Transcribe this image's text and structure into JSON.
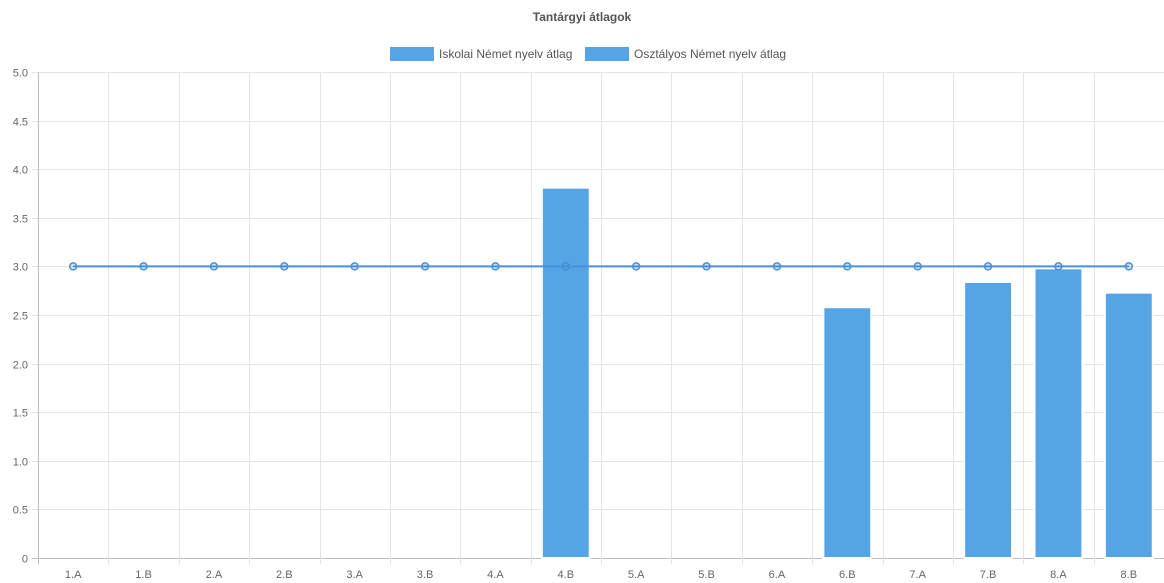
{
  "chart_data": {
    "type": "bar",
    "title": "Tantárgyi átlagok",
    "categories": [
      "1.A",
      "1.B",
      "2.A",
      "2.B",
      "3.A",
      "3.B",
      "4.A",
      "4.B",
      "5.A",
      "5.B",
      "6.A",
      "6.B",
      "7.A",
      "7.B",
      "8.A",
      "8.B"
    ],
    "series": [
      {
        "name": "Iskolai Német nyelv átlag",
        "kind": "line",
        "color": "#4a90d9",
        "values": [
          3.0,
          3.0,
          3.0,
          3.0,
          3.0,
          3.0,
          3.0,
          3.0,
          3.0,
          3.0,
          3.0,
          3.0,
          3.0,
          3.0,
          3.0,
          3.0
        ]
      },
      {
        "name": "Osztályos Német nyelv átlag",
        "kind": "bar",
        "color": "#55a4e6",
        "values": [
          null,
          null,
          null,
          null,
          null,
          null,
          null,
          3.81,
          null,
          null,
          null,
          2.58,
          null,
          2.84,
          2.98,
          2.73
        ]
      }
    ],
    "ylim": [
      0,
      5.0
    ],
    "yticks": [
      "0",
      "0.5",
      "1.0",
      "1.5",
      "2.0",
      "2.5",
      "3.0",
      "3.5",
      "4.0",
      "4.5",
      "5.0"
    ],
    "grid": true,
    "legend_position": "top"
  }
}
